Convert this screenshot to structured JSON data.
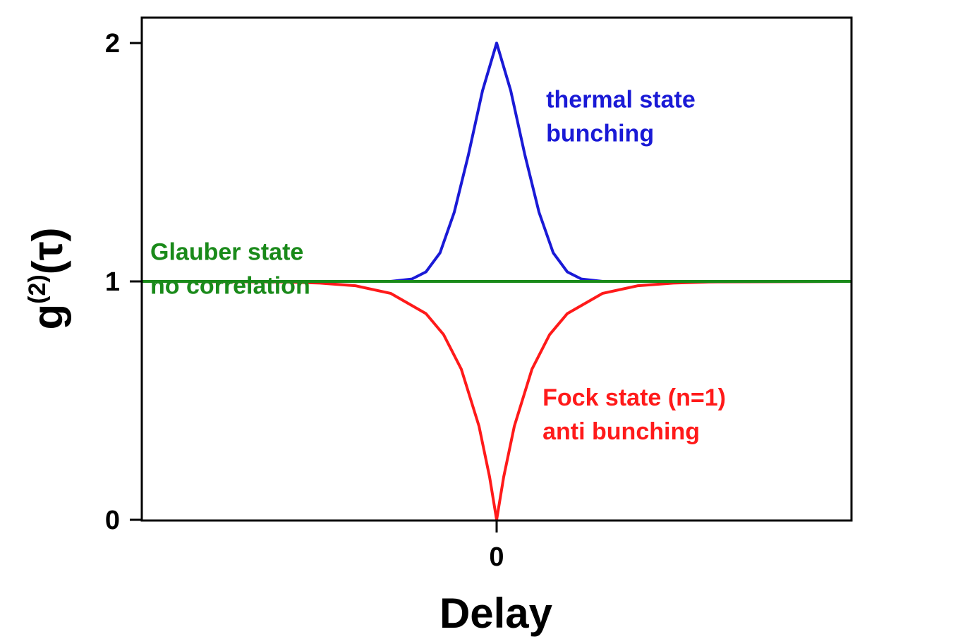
{
  "chart_data": {
    "type": "line",
    "xlabel": "Delay",
    "ylabel_main": "g",
    "ylabel_sup": "(2)",
    "ylabel_arg": "(τ)",
    "xlim": [
      -1,
      1
    ],
    "ylim": [
      0,
      2.1
    ],
    "xticks": [
      {
        "value": 0,
        "label": "0"
      }
    ],
    "yticks": [
      {
        "value": 0,
        "label": "0"
      },
      {
        "value": 1,
        "label": "1"
      },
      {
        "value": 2,
        "label": "2"
      }
    ],
    "grid": false,
    "series": [
      {
        "key": "thermal",
        "color": "#1a1ad6",
        "x": [
          -1,
          -0.3,
          -0.24,
          -0.2,
          -0.16,
          -0.12,
          -0.08,
          -0.04,
          0,
          0.04,
          0.08,
          0.12,
          0.16,
          0.2,
          0.24,
          0.3,
          1
        ],
        "y": [
          1,
          1,
          1.01,
          1.04,
          1.12,
          1.29,
          1.53,
          1.8,
          2.0,
          1.8,
          1.53,
          1.29,
          1.12,
          1.04,
          1.01,
          1,
          1
        ]
      },
      {
        "key": "fock",
        "color": "#ff1a1a",
        "x": [
          -1,
          -0.6,
          -0.5,
          -0.4,
          -0.3,
          -0.2,
          -0.15,
          -0.1,
          -0.05,
          -0.02,
          0,
          0.02,
          0.05,
          0.1,
          0.15,
          0.2,
          0.3,
          0.4,
          0.5,
          0.6,
          1
        ],
        "y": [
          1,
          0.998,
          0.993,
          0.982,
          0.95,
          0.865,
          0.777,
          0.632,
          0.393,
          0.18,
          0,
          0.18,
          0.393,
          0.632,
          0.777,
          0.865,
          0.95,
          0.982,
          0.993,
          0.998,
          1
        ]
      },
      {
        "key": "glauber",
        "color": "#1a8a1a",
        "x": [
          -1,
          1
        ],
        "y": [
          1,
          1
        ]
      }
    ],
    "annotations": [
      {
        "series": "thermal",
        "lines": [
          "thermal state",
          "bunching"
        ],
        "x": 0.14,
        "y": 1.73
      },
      {
        "series": "glauber",
        "lines": [
          "Glauber state",
          "no correlation"
        ],
        "x": -0.98,
        "y": 1.09
      },
      {
        "series": "fock",
        "lines": [
          "Fock state (n=1)",
          "anti bunching"
        ],
        "x": 0.13,
        "y": 0.48
      }
    ]
  }
}
